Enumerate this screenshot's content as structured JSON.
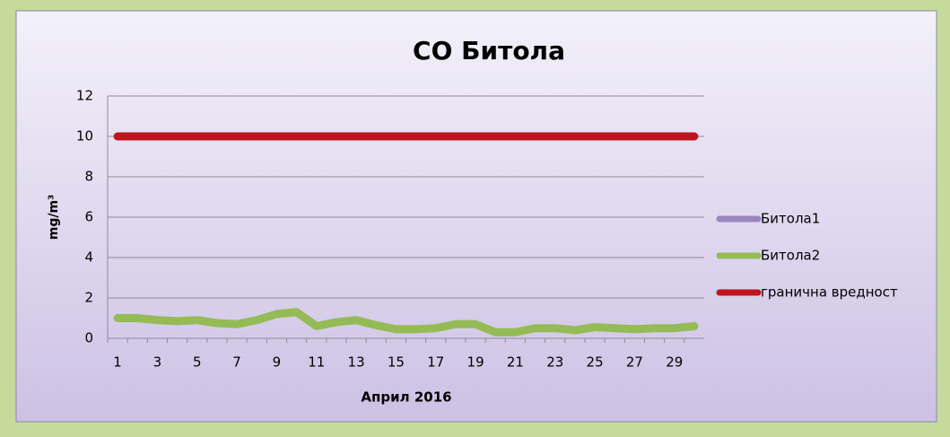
{
  "chart_data": {
    "type": "line",
    "title": "CO Битола",
    "ylabel": "mg/m³",
    "xlabel": "Април 2016",
    "categories": [
      "1",
      null,
      "3",
      null,
      "5",
      null,
      "7",
      null,
      "9",
      null,
      "11",
      null,
      "13",
      null,
      "15",
      null,
      "17",
      null,
      "19",
      null,
      "21",
      null,
      "23",
      null,
      "25",
      null,
      "27",
      null,
      "29",
      null
    ],
    "series": [
      {
        "name": "Битола1",
        "color": "#9b86c0",
        "values": [
          null,
          null,
          null,
          null,
          null,
          null,
          null,
          null,
          null,
          null,
          null,
          null,
          null,
          null,
          null,
          null,
          null,
          null,
          null,
          null,
          null,
          null,
          null,
          null,
          null,
          null,
          null,
          null,
          null,
          null
        ]
      },
      {
        "name": "Битола2",
        "color": "#94bb55",
        "values": [
          1.0,
          1.0,
          0.9,
          0.85,
          0.9,
          0.75,
          0.7,
          0.9,
          1.2,
          1.3,
          0.6,
          0.8,
          0.9,
          0.65,
          0.45,
          0.45,
          0.5,
          0.7,
          0.7,
          0.3,
          0.3,
          0.5,
          0.5,
          0.4,
          0.55,
          0.5,
          0.45,
          0.5,
          0.5,
          0.6
        ]
      },
      {
        "name": "гранична вредност",
        "color": "#c0141c",
        "values": [
          10,
          10,
          10,
          10,
          10,
          10,
          10,
          10,
          10,
          10,
          10,
          10,
          10,
          10,
          10,
          10,
          10,
          10,
          10,
          10,
          10,
          10,
          10,
          10,
          10,
          10,
          10,
          10,
          10,
          10
        ]
      }
    ],
    "ylim": [
      0,
      12
    ],
    "yticks": [
      0,
      2,
      4,
      6,
      8,
      10,
      12
    ],
    "grid": true,
    "legend": "right"
  }
}
